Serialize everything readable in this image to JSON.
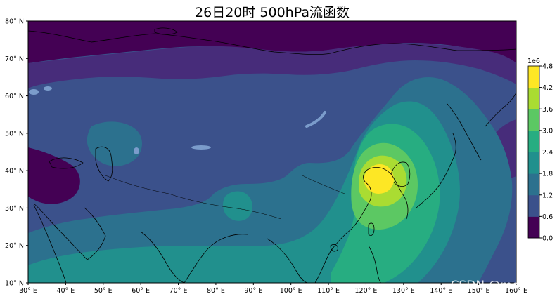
{
  "title": "26日20时 500hPa流函数",
  "map": {
    "type": "filled-contour",
    "projection": "PlateCarree",
    "field": "500hPa stream function",
    "lon_range": [
      30,
      160
    ],
    "lat_range": [
      10,
      80
    ],
    "coastlines": true,
    "lakes_shown": true
  },
  "axes": {
    "x_ticks": [
      {
        "value": 30,
        "label": "30° E"
      },
      {
        "value": 40,
        "label": "40° E"
      },
      {
        "value": 50,
        "label": "50° E"
      },
      {
        "value": 60,
        "label": "60° E"
      },
      {
        "value": 70,
        "label": "70° E"
      },
      {
        "value": 80,
        "label": "80° E"
      },
      {
        "value": 90,
        "label": "90° E"
      },
      {
        "value": 100,
        "label": "100° E"
      },
      {
        "value": 110,
        "label": "110° E"
      },
      {
        "value": 120,
        "label": "120° E"
      },
      {
        "value": 130,
        "label": "130° E"
      },
      {
        "value": 140,
        "label": "140° E"
      },
      {
        "value": 150,
        "label": "150° E"
      },
      {
        "value": 160,
        "label": "160° E"
      }
    ],
    "y_ticks": [
      {
        "value": 10,
        "label": "10° N"
      },
      {
        "value": 20,
        "label": "20° N"
      },
      {
        "value": 30,
        "label": "30° N"
      },
      {
        "value": 40,
        "label": "40° N"
      },
      {
        "value": 50,
        "label": "50° N"
      },
      {
        "value": 60,
        "label": "60° N"
      },
      {
        "value": 70,
        "label": "70° N"
      },
      {
        "value": 80,
        "label": "80° N"
      }
    ]
  },
  "colorbar": {
    "scale_label": "1e6",
    "levels": [
      0.0,
      0.6,
      1.2,
      1.8,
      2.4,
      3.0,
      3.6,
      4.2,
      4.8
    ],
    "tick_labels": [
      "0.0",
      "0.6",
      "1.2",
      "1.8",
      "2.4",
      "3.0",
      "3.6",
      "4.2",
      "4.8"
    ],
    "colors": [
      "#440154",
      "#472c7a",
      "#3b518b",
      "#2c718e",
      "#21908d",
      "#27ad81",
      "#5cc863",
      "#aadc32",
      "#fde725"
    ],
    "placement": "right"
  },
  "watermark": "CSDN @mql666",
  "colors": {
    "lake": "#7b9ccb",
    "coastline": "#000000"
  }
}
